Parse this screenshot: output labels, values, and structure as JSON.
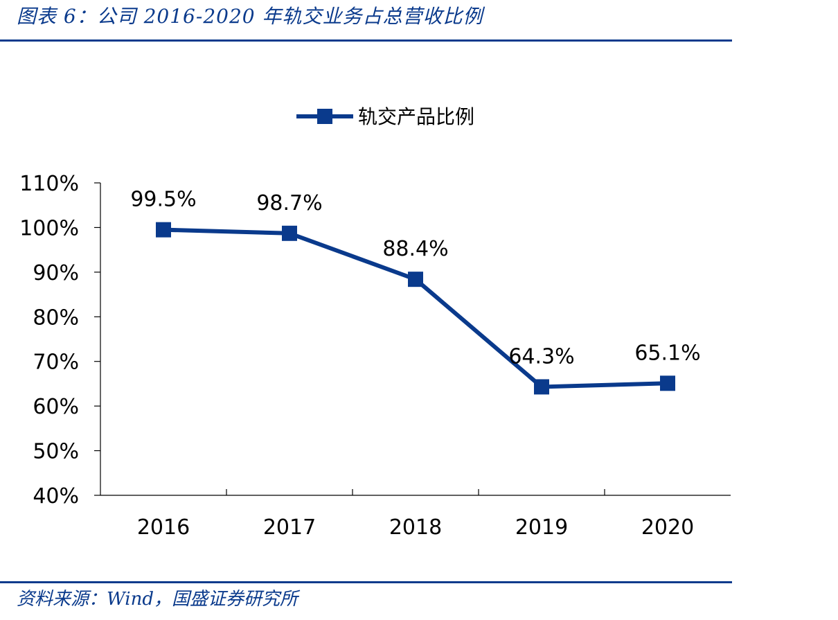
{
  "header": {
    "title": "图表 6：公司 2016-2020 年轨交业务占总营收比例"
  },
  "footer": {
    "source": "资料来源：Wind，国盛证券研究所"
  },
  "chart_data": {
    "type": "line",
    "title": "",
    "xlabel": "",
    "ylabel": "",
    "categories": [
      "2016",
      "2017",
      "2018",
      "2019",
      "2020"
    ],
    "series": [
      {
        "name": "轨交产品比例",
        "values": [
          99.5,
          98.7,
          88.4,
          64.3,
          65.1
        ],
        "color": "#0a3a8c",
        "marker": "square"
      }
    ],
    "data_labels": [
      "99.5%",
      "98.7%",
      "88.4%",
      "64.3%",
      "65.1%"
    ],
    "ylim": [
      40,
      110
    ],
    "yticks": [
      40,
      50,
      60,
      70,
      80,
      90,
      100,
      110
    ],
    "ytick_labels": [
      "40%",
      "50%",
      "60%",
      "70%",
      "80%",
      "90%",
      "100%",
      "110%"
    ],
    "legend_position": "top-center",
    "grid": false
  }
}
